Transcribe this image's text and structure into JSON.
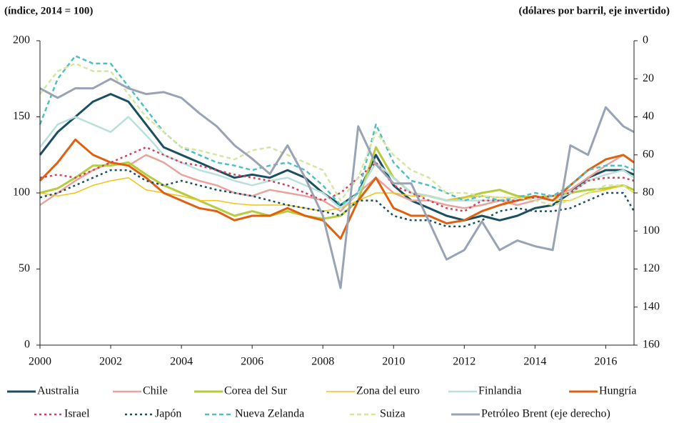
{
  "chart_data": {
    "type": "line",
    "left_label": "(índice, 2014 = 100)",
    "right_label": "(dólares por barril, eje invertido)",
    "x": [
      2000,
      2000.5,
      2001,
      2001.5,
      2002,
      2002.5,
      2003,
      2003.5,
      2004,
      2004.5,
      2005,
      2005.5,
      2006,
      2006.5,
      2007,
      2007.5,
      2008,
      2008.5,
      2009,
      2009.5,
      2010,
      2010.5,
      2011,
      2011.5,
      2012,
      2012.5,
      2013,
      2013.5,
      2014,
      2014.5,
      2015,
      2015.5,
      2016,
      2016.5,
      2016.8
    ],
    "xlim": [
      2000,
      2016.8
    ],
    "xticks": [
      2000,
      2002,
      2004,
      2006,
      2008,
      2010,
      2012,
      2014,
      2016
    ],
    "ylim": [
      0,
      200
    ],
    "yticks": [
      0,
      50,
      100,
      150,
      200
    ],
    "y2lim": [
      0,
      160
    ],
    "y2ticks": [
      0,
      20,
      40,
      60,
      80,
      100,
      120,
      140,
      160
    ],
    "y2_inverted": true,
    "series": [
      {
        "name": "Australia",
        "color": "#1b4f60",
        "style": "solid",
        "width": 3,
        "values": [
          125,
          140,
          150,
          160,
          165,
          160,
          145,
          130,
          125,
          120,
          115,
          110,
          112,
          110,
          115,
          110,
          100,
          92,
          100,
          125,
          105,
          95,
          90,
          85,
          82,
          85,
          82,
          85,
          90,
          92,
          100,
          110,
          115,
          115,
          112
        ]
      },
      {
        "name": "Chile",
        "color": "#e8a49c",
        "style": "solid",
        "width": 2.5,
        "values": [
          92,
          100,
          108,
          115,
          120,
          118,
          125,
          120,
          112,
          108,
          105,
          100,
          98,
          102,
          100,
          98,
          95,
          88,
          100,
          110,
          100,
          95,
          95,
          92,
          90,
          92,
          95,
          92,
          95,
          98,
          102,
          110,
          118,
          125,
          120
        ]
      },
      {
        "name": "Corea del Sur",
        "color": "#b5cc3c",
        "style": "solid",
        "width": 3,
        "values": [
          100,
          103,
          110,
          118,
          118,
          120,
          112,
          105,
          100,
          95,
          90,
          85,
          88,
          85,
          88,
          85,
          83,
          85,
          95,
          130,
          110,
          100,
          98,
          95,
          97,
          100,
          102,
          98,
          97,
          98,
          100,
          102,
          103,
          105,
          102
        ]
      },
      {
        "name": "Zona del euro",
        "color": "#f0c419",
        "style": "solid",
        "width": 1.5,
        "values": [
          100,
          98,
          100,
          105,
          108,
          110,
          102,
          100,
          98,
          95,
          95,
          93,
          92,
          92,
          92,
          90,
          88,
          90,
          95,
          100,
          100,
          98,
          98,
          95,
          97,
          98,
          97,
          97,
          97,
          95,
          95,
          100,
          102,
          105,
          100
        ]
      },
      {
        "name": "Finlandia",
        "color": "#b8e0dc",
        "style": "solid",
        "width": 2.5,
        "values": [
          130,
          145,
          150,
          145,
          140,
          150,
          138,
          125,
          120,
          115,
          112,
          108,
          105,
          108,
          110,
          105,
          100,
          90,
          100,
          120,
          110,
          100,
          98,
          95,
          95,
          95,
          95,
          95,
          97,
          95,
          100,
          108,
          112,
          115,
          110
        ]
      },
      {
        "name": "Hungría",
        "color": "#e06010",
        "style": "solid",
        "width": 3,
        "values": [
          108,
          120,
          135,
          125,
          120,
          118,
          110,
          100,
          95,
          90,
          88,
          82,
          85,
          85,
          90,
          85,
          82,
          70,
          95,
          110,
          90,
          85,
          85,
          80,
          82,
          88,
          92,
          95,
          98,
          95,
          105,
          115,
          122,
          125,
          120
        ]
      },
      {
        "name": "Israel",
        "color": "#d4405a",
        "style": "dotted",
        "width": 2.5,
        "values": [
          110,
          112,
          110,
          115,
          120,
          125,
          130,
          125,
          120,
          118,
          115,
          112,
          110,
          108,
          105,
          100,
          95,
          100,
          110,
          120,
          105,
          100,
          95,
          90,
          88,
          95,
          95,
          95,
          97,
          98,
          100,
          108,
          110,
          110,
          108
        ]
      },
      {
        "name": "Japón",
        "color": "#1b4f60",
        "style": "dotted",
        "width": 2.5,
        "values": [
          97,
          100,
          105,
          110,
          115,
          115,
          108,
          105,
          108,
          105,
          102,
          100,
          98,
          95,
          92,
          90,
          88,
          85,
          95,
          95,
          85,
          82,
          82,
          78,
          78,
          82,
          88,
          90,
          88,
          88,
          90,
          95,
          100,
          100,
          88
        ]
      },
      {
        "name": "Nueva Zelanda",
        "color": "#4fc0c0",
        "style": "dashed",
        "width": 2.5,
        "values": [
          145,
          175,
          190,
          185,
          185,
          170,
          155,
          140,
          130,
          125,
          120,
          118,
          115,
          118,
          120,
          115,
          105,
          92,
          100,
          145,
          120,
          108,
          105,
          100,
          95,
          98,
          95,
          97,
          100,
          98,
          105,
          115,
          118,
          118,
          115
        ]
      },
      {
        "name": "Suiza",
        "color": "#d4e6a0",
        "style": "dashed",
        "width": 2.5,
        "values": [
          165,
          180,
          185,
          180,
          180,
          165,
          150,
          140,
          130,
          128,
          125,
          122,
          128,
          130,
          125,
          120,
          115,
          95,
          110,
          140,
          125,
          115,
          110,
          100,
          100,
          98,
          97,
          97,
          95,
          92,
          95,
          100,
          105,
          105,
          100
        ]
      },
      {
        "name": "Petróleo Brent (eje derecho)",
        "color": "#9aa3b4",
        "style": "solid",
        "width": 3,
        "axis": "y2",
        "values": [
          25,
          30,
          25,
          25,
          20,
          25,
          28,
          27,
          30,
          38,
          45,
          55,
          62,
          70,
          55,
          72,
          92,
          130,
          45,
          65,
          75,
          75,
          95,
          115,
          110,
          95,
          110,
          105,
          108,
          110,
          55,
          60,
          35,
          45,
          48
        ]
      }
    ]
  }
}
